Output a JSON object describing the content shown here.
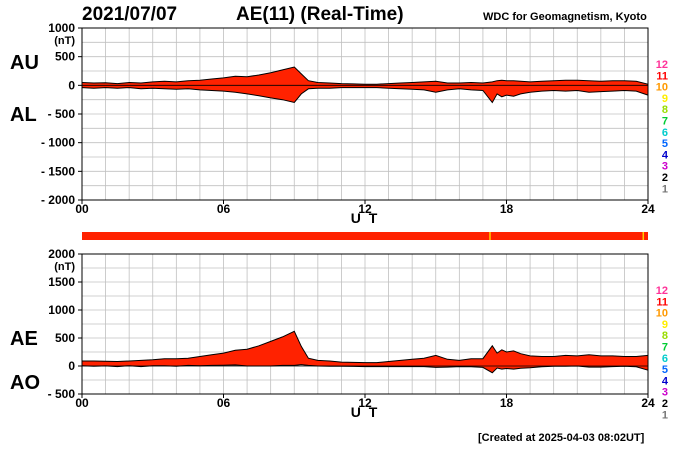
{
  "header": {
    "date": "2021/07/07",
    "title": "AE(11) (Real-Time)",
    "source": "WDC for Geomagnetism, Kyoto"
  },
  "footer": {
    "created": "[Created at 2025-04-03 08:02UT]"
  },
  "colors": {
    "fill": "#ff2200",
    "status_bar": "#ff2200",
    "status_marks": "#ffd000",
    "grid": "#c0c0c0",
    "hour_colors": [
      "#ff3399",
      "#ff0000",
      "#ff9900",
      "#ffee00",
      "#99dd00",
      "#00cc33",
      "#00cccc",
      "#0066ff",
      "#0000cc",
      "#cc00cc",
      "#000000",
      "#777777",
      "#cccccc"
    ]
  },
  "hour_legend": [
    "12",
    "11",
    "10",
    "9",
    "8",
    "7",
    "6",
    "5",
    "4",
    "3",
    "2",
    "1"
  ],
  "status_bar": {
    "marks_hour": [
      17.3,
      23.8
    ]
  },
  "chart_data": [
    {
      "type": "area",
      "panel": "AU/AL",
      "unit": "(nT)",
      "upper_label": "AU",
      "lower_label": "AL",
      "ylim": [
        -2000,
        1000
      ],
      "yticks": [
        1000,
        500,
        0,
        -500,
        -1000,
        -1500,
        -2000
      ],
      "ytick_labels": [
        "1000",
        "500",
        "0",
        "- 500",
        "- 1000",
        "- 1500",
        "- 2000"
      ],
      "xlabel": "U T",
      "xlim": [
        0,
        24
      ],
      "xticks": [
        0,
        6,
        12,
        18,
        24
      ],
      "xtick_labels": [
        "00",
        "06",
        "12",
        "18",
        "24"
      ],
      "x": [
        0,
        0.5,
        1,
        1.5,
        2,
        2.5,
        3,
        3.5,
        4,
        4.5,
        5,
        5.5,
        6,
        6.5,
        7,
        7.5,
        8,
        8.5,
        9,
        9.3,
        9.6,
        10,
        10.5,
        11,
        11.5,
        12,
        12.5,
        13,
        13.5,
        14,
        14.5,
        15,
        15.5,
        16,
        16.5,
        17,
        17.4,
        17.6,
        17.8,
        18,
        18.3,
        18.6,
        19,
        19.5,
        20,
        20.5,
        21,
        21.5,
        22,
        22.5,
        23,
        23.5,
        24
      ],
      "series": [
        {
          "name": "AU",
          "values": [
            50,
            40,
            45,
            30,
            50,
            40,
            60,
            70,
            60,
            80,
            90,
            110,
            130,
            160,
            150,
            180,
            220,
            270,
            320,
            200,
            80,
            50,
            40,
            30,
            25,
            20,
            20,
            30,
            40,
            50,
            60,
            70,
            40,
            40,
            50,
            40,
            60,
            80,
            90,
            80,
            80,
            70,
            60,
            70,
            80,
            90,
            90,
            80,
            70,
            80,
            80,
            70,
            20
          ]
        },
        {
          "name": "AL",
          "values": [
            -40,
            -50,
            -40,
            -50,
            -40,
            -60,
            -50,
            -60,
            -70,
            -60,
            -80,
            -90,
            -100,
            -120,
            -150,
            -180,
            -220,
            -250,
            -300,
            -150,
            -60,
            -50,
            -50,
            -40,
            -40,
            -40,
            -40,
            -50,
            -60,
            -70,
            -80,
            -120,
            -80,
            -60,
            -80,
            -90,
            -300,
            -150,
            -200,
            -170,
            -190,
            -150,
            -120,
            -100,
            -90,
            -100,
            -90,
            -120,
            -110,
            -100,
            -90,
            -100,
            -170
          ]
        }
      ]
    },
    {
      "type": "area",
      "panel": "AE/AO",
      "unit": "(nT)",
      "upper_label": "AE",
      "lower_label": "AO",
      "ylim": [
        -500,
        2000
      ],
      "yticks": [
        2000,
        1500,
        1000,
        500,
        0,
        -500
      ],
      "ytick_labels": [
        "2000",
        "1500",
        "1000",
        "500",
        "0",
        "- 500"
      ],
      "xlabel": "U T",
      "xlim": [
        0,
        24
      ],
      "xticks": [
        0,
        6,
        12,
        18,
        24
      ],
      "xtick_labels": [
        "00",
        "06",
        "12",
        "18",
        "24"
      ],
      "x": [
        0,
        0.5,
        1,
        1.5,
        2,
        2.5,
        3,
        3.5,
        4,
        4.5,
        5,
        5.5,
        6,
        6.5,
        7,
        7.5,
        8,
        8.5,
        9,
        9.3,
        9.6,
        10,
        10.5,
        11,
        11.5,
        12,
        12.5,
        13,
        13.5,
        14,
        14.5,
        15,
        15.5,
        16,
        16.5,
        17,
        17.4,
        17.6,
        17.8,
        18,
        18.3,
        18.6,
        19,
        19.5,
        20,
        20.5,
        21,
        21.5,
        22,
        22.5,
        23,
        23.5,
        24
      ],
      "series": [
        {
          "name": "AE",
          "values": [
            90,
            90,
            85,
            80,
            90,
            100,
            110,
            130,
            130,
            140,
            170,
            200,
            230,
            280,
            300,
            360,
            440,
            520,
            620,
            350,
            140,
            100,
            90,
            70,
            65,
            60,
            60,
            80,
            100,
            120,
            140,
            190,
            120,
            100,
            130,
            130,
            360,
            230,
            290,
            250,
            270,
            220,
            180,
            170,
            170,
            190,
            180,
            200,
            180,
            180,
            170,
            170,
            190
          ]
        },
        {
          "name": "AO",
          "values": [
            5,
            -5,
            2,
            -10,
            5,
            -10,
            5,
            5,
            -5,
            10,
            5,
            10,
            15,
            20,
            0,
            0,
            0,
            10,
            10,
            25,
            10,
            0,
            -5,
            -5,
            -8,
            -10,
            -10,
            -10,
            -10,
            -10,
            -10,
            -25,
            -20,
            -10,
            -15,
            -25,
            -120,
            -35,
            -55,
            -45,
            -55,
            -40,
            -30,
            -15,
            -5,
            -5,
            0,
            -20,
            -20,
            -10,
            -5,
            -15,
            -75
          ]
        }
      ]
    }
  ]
}
